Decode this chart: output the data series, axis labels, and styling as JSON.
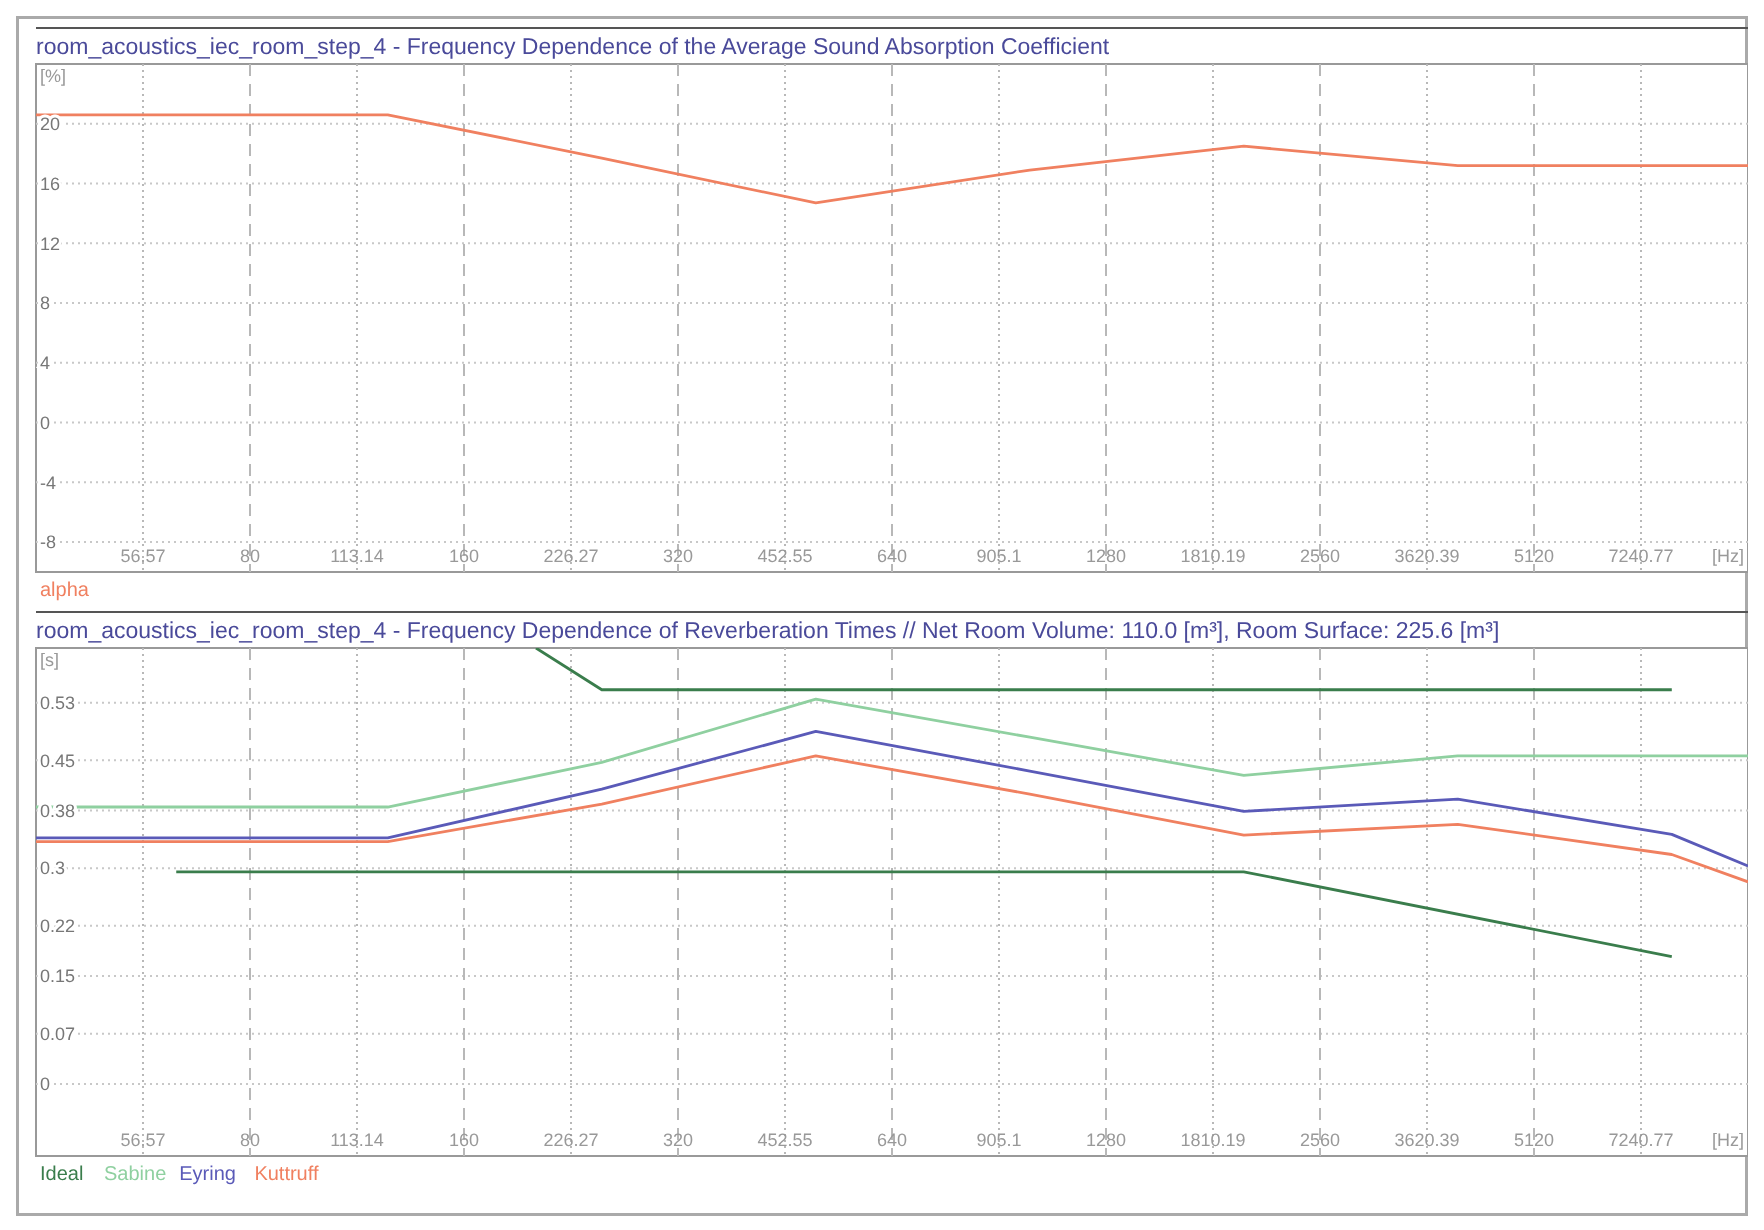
{
  "chart_data": [
    {
      "type": "line",
      "title": "room_acoustics_iec_room_step_4 - Frequency Dependence of the Average Sound Absorption Coefficient",
      "xlabel": "[Hz]",
      "ylabel": "[%]",
      "log": "x",
      "grid": true,
      "legend": "bottom left",
      "xlim": [
        40,
        10240
      ],
      "xticks": [
        56.57,
        80,
        113.14,
        160,
        226.27,
        320,
        452.55,
        640,
        905.1,
        1280,
        1810.19,
        2560,
        3620.39,
        5120,
        7240.77
      ],
      "ylim": [
        -10,
        24
      ],
      "yticks": [
        -8,
        -4,
        0,
        4,
        8,
        12,
        16,
        20
      ],
      "series": [
        {
          "name": "alpha",
          "color": "#f08060",
          "x": [
            40,
            125,
            250,
            500,
            1000,
            2000,
            4000,
            10240
          ],
          "values": [
            20.6,
            20.6,
            17.7,
            14.7,
            16.9,
            18.5,
            17.2,
            17.2
          ]
        }
      ]
    },
    {
      "type": "line",
      "title": "room_acoustics_iec_room_step_4 - Frequency Dependence of Reverberation Times // Net Room Volume: 110.0 [m³], Room Surface: 225.6 [m³]",
      "xlabel": "[Hz]",
      "ylabel": "[s]",
      "log": "x",
      "grid": true,
      "legend": "bottom left",
      "xlim": [
        40,
        10240
      ],
      "xticks": [
        56.57,
        80,
        113.14,
        160,
        226.27,
        320,
        452.55,
        640,
        905.1,
        1280,
        1810.19,
        2560,
        3620.39,
        5120,
        7240.77
      ],
      "ylim": [
        -0.1,
        0.606
      ],
      "yticks": [
        0,
        0.07,
        0.15,
        0.22,
        0.3,
        0.38,
        0.45,
        0.53
      ],
      "series": [
        {
          "name": "Ideal",
          "color": "#3a7d4c",
          "x": [
            63,
            2000,
            8000
          ],
          "values": [
            0.295,
            0.295,
            0.177
          ]
        },
        {
          "color": "#3a7d4c",
          "x": [
            202,
            250,
            8000
          ],
          "values": [
            0.606,
            0.548,
            0.548
          ]
        },
        {
          "name": "Sabine",
          "color": "#8fd0a0",
          "x": [
            40,
            125,
            250,
            500,
            1000,
            2000,
            4000,
            10240
          ],
          "values": [
            0.385,
            0.385,
            0.447,
            0.535,
            0.482,
            0.429,
            0.456,
            0.456
          ]
        },
        {
          "name": "Eyring",
          "color": "#5a5ab8",
          "x": [
            40,
            125,
            250,
            500,
            1000,
            2000,
            4000,
            8000,
            10240
          ],
          "values": [
            0.342,
            0.342,
            0.41,
            0.49,
            0.435,
            0.379,
            0.396,
            0.347,
            0.303
          ]
        },
        {
          "name": "Kuttruff",
          "color": "#f08060",
          "x": [
            40,
            125,
            250,
            500,
            1000,
            2000,
            4000,
            8000,
            10240
          ],
          "values": [
            0.337,
            0.337,
            0.389,
            0.456,
            0.403,
            0.346,
            0.361,
            0.319,
            0.281
          ]
        }
      ]
    }
  ]
}
